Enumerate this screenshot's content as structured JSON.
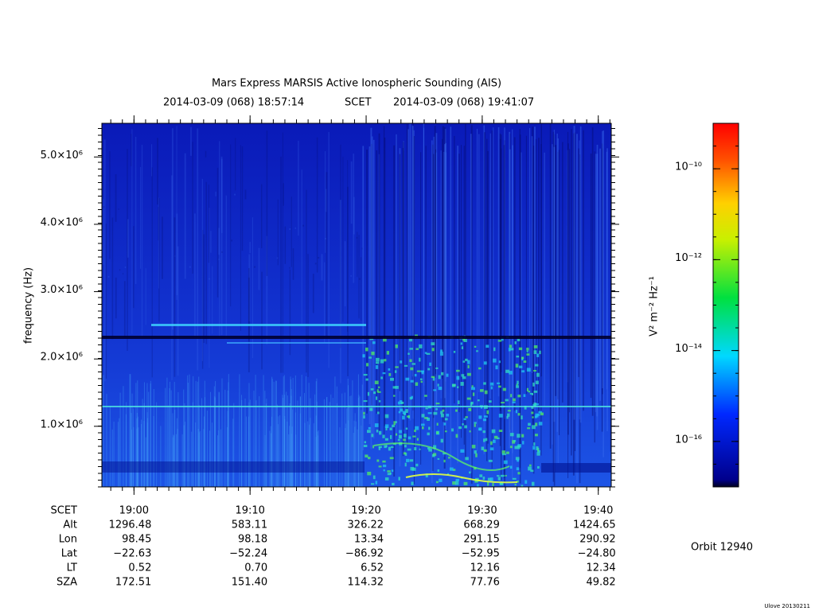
{
  "chart_data": {
    "type": "spectrogram",
    "title": "Mars Express MARSIS Active Ionospheric Sounding (AIS)",
    "start": "2014-03-09 (068) 18:57:14",
    "time_system": "SCET",
    "end": "2014-03-09 (068) 19:41:07",
    "ylabel": "frequency (Hz)",
    "ylim": [
      100000,
      5500000
    ],
    "yticks": [
      {
        "value": 1000000,
        "label": "1.0×10⁶"
      },
      {
        "value": 2000000,
        "label": "2.0×10⁶"
      },
      {
        "value": 3000000,
        "label": "3.0×10⁶"
      },
      {
        "value": 4000000,
        "label": "4.0×10⁶"
      },
      {
        "value": 5000000,
        "label": "5.0×10⁶"
      }
    ],
    "xticks": [
      "19:00",
      "19:10",
      "19:20",
      "19:30",
      "19:40"
    ],
    "colorbar": {
      "label": "V² m⁻² Hz⁻¹",
      "scale": "log",
      "zlim": [
        1e-17,
        1e-09
      ],
      "ticks": [
        {
          "value": 1e-10,
          "label": "10⁻¹⁰"
        },
        {
          "value": 1e-12,
          "label": "10⁻¹²"
        },
        {
          "value": 1e-14,
          "label": "10⁻¹⁴"
        },
        {
          "value": 1e-16,
          "label": "10⁻¹⁶"
        }
      ]
    },
    "ephemeris": {
      "labels": [
        "SCET",
        "Alt",
        "Lon",
        "Lat",
        "LT",
        "SZA"
      ],
      "rows": [
        [
          "1296.48",
          "583.11",
          "326.22",
          "668.29",
          "1424.65"
        ],
        [
          "98.45",
          "98.18",
          "13.34",
          "291.15",
          "290.92"
        ],
        [
          "−22.63",
          "−52.24",
          "−86.92",
          "−52.95",
          "−24.80"
        ],
        [
          "0.52",
          "0.70",
          "6.52",
          "12.16",
          "12.34"
        ],
        [
          "172.51",
          "151.40",
          "114.32",
          "77.76",
          "49.82"
        ]
      ]
    },
    "orbit": "Orbit 12940",
    "footer": "Ulove 20130211"
  }
}
